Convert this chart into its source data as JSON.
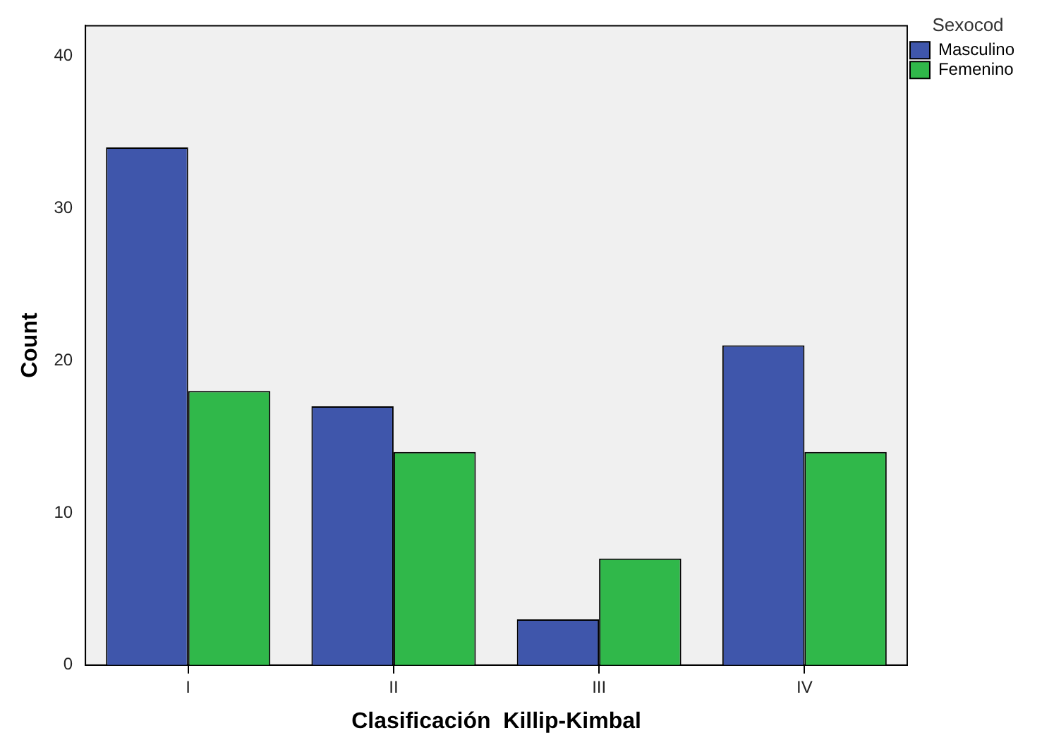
{
  "chart_data": {
    "type": "bar",
    "xlabel": "Clasificación  Killip-Kimbal",
    "ylabel": "Count",
    "legend_title": "Sexocod",
    "categories": [
      "I",
      "II",
      "III",
      "IV"
    ],
    "series": [
      {
        "name": "Masculino",
        "color": "#3f56ab",
        "values": [
          34,
          17,
          3,
          21
        ]
      },
      {
        "name": "Femenino",
        "color": "#30b84a",
        "values": [
          18,
          14,
          7,
          14
        ]
      }
    ],
    "ylim": [
      0,
      42
    ],
    "yticks": [
      0,
      10,
      20,
      30,
      40
    ],
    "grid": false,
    "legend": "top right"
  }
}
